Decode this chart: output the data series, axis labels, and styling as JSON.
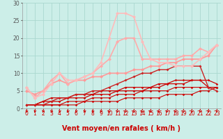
{
  "xlabel": "Vent moyen/en rafales ( km/h )",
  "xlim": [
    -0.5,
    23.5
  ],
  "ylim": [
    0,
    30
  ],
  "yticks": [
    0,
    5,
    10,
    15,
    20,
    25,
    30
  ],
  "xticks": [
    0,
    1,
    2,
    3,
    4,
    5,
    6,
    7,
    8,
    9,
    10,
    11,
    12,
    13,
    14,
    15,
    16,
    17,
    18,
    19,
    20,
    21,
    22,
    23
  ],
  "background_color": "#cceee8",
  "grid_color": "#aad8d0",
  "lines": [
    {
      "x": [
        0,
        1,
        2,
        3,
        4,
        5,
        6,
        7,
        8,
        9,
        10,
        11,
        12,
        13,
        14,
        15,
        16,
        17,
        18,
        19,
        20,
        21,
        22,
        23
      ],
      "y": [
        1,
        1,
        1,
        1,
        1,
        1,
        1,
        2,
        2,
        2,
        2,
        2,
        3,
        3,
        3,
        3,
        3,
        4,
        4,
        4,
        4,
        5,
        5,
        6
      ],
      "color": "#cc0000",
      "lw": 0.8,
      "marker": "D",
      "ms": 1.8
    },
    {
      "x": [
        0,
        1,
        2,
        3,
        4,
        5,
        6,
        7,
        8,
        9,
        10,
        11,
        12,
        13,
        14,
        15,
        16,
        17,
        18,
        19,
        20,
        21,
        22,
        23
      ],
      "y": [
        1,
        1,
        1,
        1,
        1,
        2,
        2,
        2,
        3,
        3,
        3,
        4,
        4,
        4,
        5,
        5,
        5,
        5,
        6,
        6,
        6,
        6,
        6,
        6
      ],
      "color": "#cc0000",
      "lw": 0.8,
      "marker": "D",
      "ms": 1.8
    },
    {
      "x": [
        0,
        1,
        2,
        3,
        4,
        5,
        6,
        7,
        8,
        9,
        10,
        11,
        12,
        13,
        14,
        15,
        16,
        17,
        18,
        19,
        20,
        21,
        22,
        23
      ],
      "y": [
        1,
        1,
        2,
        2,
        2,
        3,
        3,
        3,
        4,
        4,
        4,
        5,
        5,
        5,
        5,
        6,
        6,
        7,
        7,
        7,
        8,
        8,
        8,
        7
      ],
      "color": "#cc0000",
      "lw": 0.9,
      "marker": "D",
      "ms": 1.8
    },
    {
      "x": [
        0,
        1,
        2,
        3,
        4,
        5,
        6,
        7,
        8,
        9,
        10,
        11,
        12,
        13,
        14,
        15,
        16,
        17,
        18,
        19,
        20,
        21,
        22,
        23
      ],
      "y": [
        1,
        1,
        2,
        3,
        3,
        3,
        4,
        4,
        4,
        5,
        5,
        5,
        6,
        6,
        6,
        6,
        7,
        7,
        8,
        8,
        8,
        8,
        6,
        6
      ],
      "color": "#cc0000",
      "lw": 0.9,
      "marker": "D",
      "ms": 1.8
    },
    {
      "x": [
        0,
        1,
        2,
        3,
        4,
        5,
        6,
        7,
        8,
        9,
        10,
        11,
        12,
        13,
        14,
        15,
        16,
        17,
        18,
        19,
        20,
        21,
        22,
        23
      ],
      "y": [
        1,
        1,
        1,
        2,
        3,
        3,
        4,
        4,
        5,
        5,
        6,
        7,
        8,
        9,
        10,
        10,
        11,
        11,
        12,
        12,
        12,
        12,
        6,
        5
      ],
      "color": "#cc2222",
      "lw": 1.0,
      "marker": "D",
      "ms": 2.0
    },
    {
      "x": [
        0,
        1,
        2,
        3,
        4,
        5,
        6,
        7,
        8,
        9,
        10,
        11,
        12,
        13,
        14,
        15,
        16,
        17,
        18,
        19,
        20,
        21,
        22,
        23
      ],
      "y": [
        5,
        4,
        5,
        7,
        8,
        7,
        8,
        8,
        9,
        9,
        10,
        10,
        10,
        11,
        11,
        12,
        12,
        13,
        13,
        14,
        14,
        14,
        15,
        18
      ],
      "color": "#ff9999",
      "lw": 1.2,
      "marker": "D",
      "ms": 2.5
    },
    {
      "x": [
        0,
        1,
        2,
        3,
        4,
        5,
        6,
        7,
        8,
        9,
        10,
        11,
        12,
        13,
        14,
        15,
        16,
        17,
        18,
        19,
        20,
        21,
        22,
        23
      ],
      "y": [
        6,
        3,
        5,
        8,
        10,
        7,
        8,
        9,
        10,
        12,
        14,
        19,
        20,
        20,
        14,
        14,
        14,
        14,
        14,
        15,
        15,
        17,
        16,
        18
      ],
      "color": "#ffaaaa",
      "lw": 1.2,
      "marker": "D",
      "ms": 2.5
    },
    {
      "x": [
        0,
        1,
        2,
        3,
        4,
        5,
        6,
        7,
        8,
        9,
        10,
        11,
        12,
        13,
        14,
        15,
        16,
        17,
        18,
        19,
        20,
        21,
        22,
        23
      ],
      "y": [
        6,
        3,
        4,
        7,
        10,
        8,
        8,
        9,
        10,
        13,
        20,
        27,
        27,
        26,
        19,
        14,
        13,
        13,
        12,
        12,
        12,
        14,
        16,
        18
      ],
      "color": "#ffbbbb",
      "lw": 1.2,
      "marker": "D",
      "ms": 2.5
    }
  ],
  "xlabel_fontsize": 7,
  "tick_fontsize": 5.5
}
